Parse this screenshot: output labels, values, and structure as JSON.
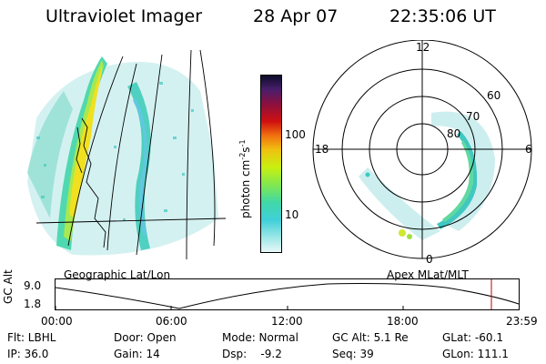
{
  "header": {
    "instrument": "Ultraviolet Imager",
    "date": "28 Apr 07",
    "time": "22:35:06 UT"
  },
  "colorbar": {
    "label": "photon cm",
    "label_sup1": "-2",
    "label_mid": "s",
    "label_sup2": "-1",
    "ticks": [
      "100",
      "10"
    ]
  },
  "polar_plot": {
    "mlt_labels": [
      "12",
      "18",
      "6",
      "0"
    ],
    "lat_labels": [
      "60",
      "70",
      "80"
    ]
  },
  "projection": {
    "left_label": "Geographic Lat/Lon",
    "right_label": "Apex MLat/MLT"
  },
  "altitude_plot": {
    "axis_label": "GC Alt",
    "y_ticks": [
      "9.0",
      "1.8"
    ],
    "x_ticks": [
      "00:00",
      "06:00",
      "12:00",
      "18:00",
      "23:59"
    ]
  },
  "status": {
    "flt": "Flt: LBHL",
    "ip": "IP: 36.0",
    "door": "Door: Open",
    "gain": "Gain: 14",
    "mode": "Mode: Normal",
    "dsp": "Dsp:    -9.2",
    "gc_alt": "GC Alt: 5.1 Re",
    "seq": "Seq: 39",
    "glat": "GLat: -60.1",
    "glon": "GLon: 111.1"
  },
  "colors": {
    "bright": "#f0e020",
    "mid": "#90e050",
    "cyan": "#40d0c0",
    "faint": "#c8ecec",
    "marker": "#c00000"
  }
}
